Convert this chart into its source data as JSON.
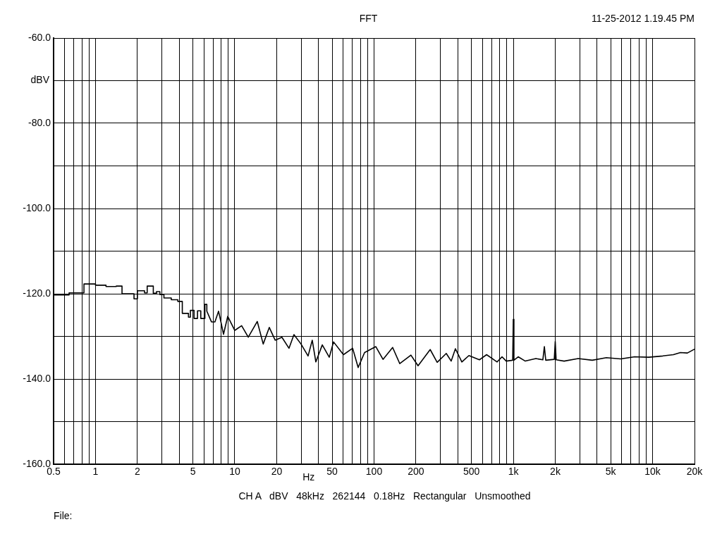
{
  "chart_data": {
    "type": "line",
    "title": "FFT",
    "xlabel": "Hz",
    "ylabel": "dBV",
    "log": "x",
    "grid": true,
    "legend": false,
    "marker": "none",
    "line_style": "solid",
    "annotations": [
      "11-25-2012 1.19.45 PM",
      "CH A   dBV   48kHz   262144   0.18Hz   Rectangular   Unsmoothed",
      "File:"
    ],
    "xlim": [
      0.5,
      20000
    ],
    "ylim": [
      -160,
      -60
    ],
    "xticks": [
      0.5,
      {
        "value": 0.6,
        "label": null
      },
      {
        "value": 0.7,
        "label": null
      },
      {
        "value": 0.8,
        "label": null
      },
      {
        "value": 0.9,
        "label": null
      },
      1,
      2,
      {
        "value": 3,
        "label": null
      },
      {
        "value": 4,
        "label": null
      },
      5,
      {
        "value": 6,
        "label": null
      },
      {
        "value": 7,
        "label": null
      },
      {
        "value": 8,
        "label": null
      },
      {
        "value": 9,
        "label": null
      },
      10,
      20,
      {
        "value": 30,
        "label": null
      },
      {
        "value": 40,
        "label": null
      },
      50,
      {
        "value": 60,
        "label": null
      },
      {
        "value": 70,
        "label": null
      },
      {
        "value": 80,
        "label": null
      },
      {
        "value": 90,
        "label": null
      },
      100,
      200,
      {
        "value": 300,
        "label": null
      },
      {
        "value": 400,
        "label": null
      },
      500,
      {
        "value": 600,
        "label": null
      },
      {
        "value": 700,
        "label": null
      },
      {
        "value": 800,
        "label": null
      },
      {
        "value": 900,
        "label": null
      },
      {
        "value": 1000,
        "label": "1k"
      },
      {
        "value": 2000,
        "label": "2k"
      },
      {
        "value": 3000,
        "label": null
      },
      {
        "value": 4000,
        "label": null
      },
      {
        "value": 5000,
        "label": "5k"
      },
      {
        "value": 6000,
        "label": null
      },
      {
        "value": 7000,
        "label": null
      },
      {
        "value": 8000,
        "label": null
      },
      {
        "value": 9000,
        "label": null
      },
      {
        "value": 10000,
        "label": "10k"
      },
      {
        "value": 20000,
        "label": "20k"
      }
    ],
    "yticks": [
      {
        "value": -60,
        "label": "-60.0"
      },
      {
        "value": -70,
        "label": null
      },
      {
        "value": -80,
        "label": "-80.0"
      },
      {
        "value": -90,
        "label": null
      },
      {
        "value": -100,
        "label": "-100.0"
      },
      {
        "value": -110,
        "label": null
      },
      {
        "value": -120,
        "label": "-120.0"
      },
      {
        "value": -130,
        "label": null
      },
      {
        "value": -140,
        "label": "-140.0"
      },
      {
        "value": -150,
        "label": null
      },
      {
        "value": -160,
        "label": "-160.0"
      }
    ],
    "series": [
      {
        "color": "#000000",
        "x": [
          0.5,
          0.646,
          0.646,
          0.826,
          0.826,
          1.0,
          1.0,
          1.19,
          1.19,
          1.41,
          1.41,
          1.55,
          1.55,
          1.89,
          1.89,
          2.0,
          2.0,
          2.25,
          2.25,
          2.35,
          2.35,
          2.6,
          2.6,
          2.74,
          2.74,
          2.9,
          2.9,
          3.1,
          3.1,
          3.5,
          3.5,
          3.9,
          3.9,
          4.2,
          4.2,
          4.65,
          4.65,
          4.8,
          4.8,
          5.1,
          5.1,
          5.4,
          5.4,
          5.7,
          5.7,
          6.1,
          6.1,
          6.3,
          6.3,
          6.8,
          7.2,
          7.65,
          8.0,
          8.3,
          8.9,
          10,
          11.2,
          12.5,
          14.5,
          16,
          17.7,
          19.5,
          21.8,
          24.5,
          26.6,
          29.9,
          33.6,
          36,
          38.2,
          42.5,
          47.7,
          51.2,
          60.3,
          70.2,
          76.9,
          85.5,
          103,
          116,
          136,
          153,
          184,
          207,
          253,
          284,
          330,
          358,
          384,
          427,
          480,
          571,
          643,
          765,
          830,
          890,
          990,
          1000,
          1010,
          1084,
          1219,
          1452,
          1630,
          1671,
          1710,
          1968,
          2000,
          2030,
          2317,
          2924,
          3690,
          4656,
          5890,
          7430,
          9380,
          11830,
          14090,
          15840,
          17780,
          20000
        ],
        "values": [
          -120.3,
          -120.3,
          -119.8,
          -119.8,
          -117.7,
          -117.7,
          -118.0,
          -118.0,
          -118.3,
          -118.3,
          -118.2,
          -118.2,
          -120.0,
          -120.0,
          -121.2,
          -121.2,
          -119.3,
          -119.3,
          -119.8,
          -119.8,
          -118.2,
          -118.2,
          -119.9,
          -119.9,
          -119.5,
          -119.5,
          -120.2,
          -120.2,
          -121.0,
          -121.0,
          -121.4,
          -121.4,
          -121.8,
          -121.8,
          -124.6,
          -124.6,
          -125.5,
          -125.5,
          -123.9,
          -123.9,
          -125.8,
          -125.8,
          -124.0,
          -124.0,
          -125.8,
          -125.8,
          -122.5,
          -122.5,
          -124.1,
          -126.6,
          -126.6,
          -124.1,
          -127.0,
          -129.5,
          -125.3,
          -128.6,
          -127.5,
          -130.2,
          -126.5,
          -131.8,
          -127.9,
          -130.9,
          -130.2,
          -132.8,
          -129.6,
          -131.8,
          -134.6,
          -130.9,
          -136.0,
          -132.0,
          -134.9,
          -131.3,
          -134.3,
          -132.8,
          -137.3,
          -133.8,
          -132.4,
          -135.4,
          -132.6,
          -136.4,
          -134.4,
          -136.9,
          -133.1,
          -136.1,
          -134.0,
          -135.8,
          -132.9,
          -136.0,
          -134.5,
          -135.5,
          -134.3,
          -136.0,
          -134.8,
          -135.8,
          -135.6,
          -126.0,
          -135.6,
          -134.8,
          -135.8,
          -135.2,
          -135.5,
          -132.4,
          -135.6,
          -135.4,
          -131.2,
          -135.5,
          -135.8,
          -135.2,
          -135.6,
          -135.0,
          -135.3,
          -134.8,
          -134.9,
          -134.6,
          -134.3,
          -133.8,
          -133.9,
          -133.0
        ]
      }
    ]
  }
}
